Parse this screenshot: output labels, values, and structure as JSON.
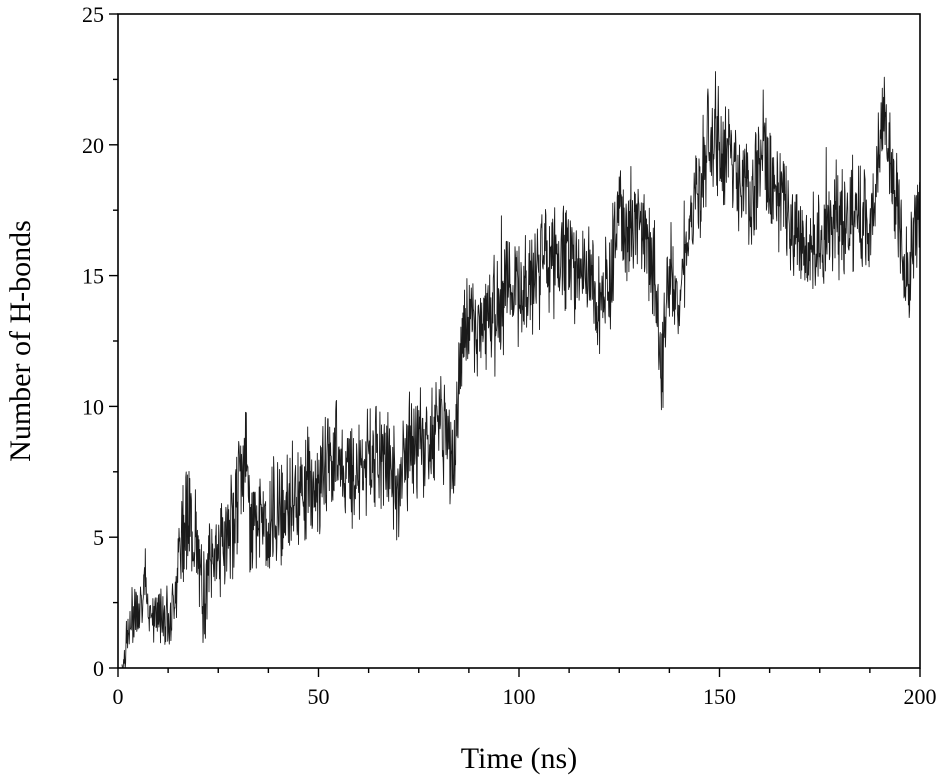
{
  "chart_data": {
    "type": "line",
    "title": "",
    "xlabel": "Time (ns)",
    "ylabel": "Number of H-bonds",
    "xlim": [
      0,
      200
    ],
    "ylim": [
      0,
      25
    ],
    "x_ticks": [
      0,
      50,
      100,
      150,
      200
    ],
    "y_ticks": [
      0,
      5,
      10,
      15,
      20,
      25
    ],
    "x_minor_step": 12.5,
    "y_minor_step": 2.5,
    "grid": false,
    "legend": "none",
    "line_color": "#1a1a1a",
    "series": [
      {
        "x": [
          1,
          2,
          3,
          4,
          5,
          6,
          8,
          10,
          12,
          13,
          14,
          15,
          16,
          17,
          18,
          19,
          20,
          21,
          22,
          23,
          25,
          27,
          29,
          30,
          31,
          32,
          33,
          35,
          37,
          40,
          43,
          45,
          47,
          49,
          50,
          52,
          53,
          54,
          55,
          57,
          58,
          60,
          62,
          64,
          65,
          67,
          69,
          70,
          71,
          72,
          74,
          76,
          78,
          79,
          80,
          82,
          83,
          84,
          85,
          86,
          87,
          88,
          90,
          92,
          94,
          96,
          98,
          100,
          102,
          104,
          106,
          108,
          110,
          112,
          113,
          114,
          116,
          118,
          119,
          120,
          121,
          122,
          123,
          124,
          125,
          126,
          128,
          130,
          131,
          132,
          133,
          134,
          135,
          136,
          137,
          138,
          139,
          140,
          141,
          142,
          143,
          144,
          145,
          146,
          147,
          148,
          149,
          150,
          151,
          153,
          155,
          157,
          159,
          160,
          161,
          162,
          163,
          165,
          167,
          169,
          170,
          172,
          174,
          176,
          178,
          180,
          182,
          184,
          186,
          187,
          188,
          189,
          190,
          191,
          192,
          193,
          194,
          195,
          196,
          197,
          198,
          199,
          200
        ],
        "y": [
          0.1,
          0.9,
          1.5,
          2.2,
          2.5,
          2.8,
          2.3,
          2.0,
          2.1,
          2.0,
          2.6,
          4.0,
          5.5,
          6.0,
          5.2,
          5.6,
          3.6,
          3.0,
          3.2,
          4.1,
          4.6,
          5.0,
          5.7,
          7.0,
          7.5,
          8.2,
          5.5,
          5.6,
          5.3,
          6.2,
          6.4,
          6.8,
          7.1,
          6.9,
          7.0,
          7.8,
          8.2,
          8.0,
          8.3,
          7.2,
          7.5,
          7.6,
          7.7,
          8.4,
          8.1,
          8.0,
          7.2,
          6.7,
          7.8,
          8.2,
          8.5,
          8.7,
          8.3,
          9.5,
          10.0,
          8.5,
          7.9,
          8.6,
          11.0,
          12.5,
          12.8,
          12.6,
          13.0,
          13.7,
          14.0,
          14.2,
          14.5,
          14.3,
          14.4,
          15.0,
          15.4,
          15.6,
          15.8,
          16.0,
          15.2,
          15.1,
          14.8,
          14.9,
          14.2,
          13.0,
          14.5,
          15.0,
          15.2,
          16.8,
          17.2,
          16.9,
          17.0,
          17.1,
          17.0,
          16.5,
          15.5,
          14.8,
          12.5,
          11.5,
          15.0,
          15.2,
          14.0,
          14.2,
          15.6,
          16.5,
          17.0,
          17.8,
          18.0,
          19.2,
          20.2,
          20.0,
          19.8,
          20.2,
          19.5,
          19.8,
          18.5,
          18.0,
          18.3,
          19.8,
          20.0,
          19.0,
          18.5,
          17.8,
          17.5,
          17.0,
          16.5,
          16.0,
          16.2,
          16.4,
          16.8,
          17.0,
          17.2,
          17.4,
          17.0,
          16.8,
          17.5,
          18.5,
          20.5,
          20.3,
          20.2,
          19.5,
          18.0,
          16.5,
          15.0,
          14.8,
          16.0,
          17.0,
          18.0
        ]
      }
    ]
  }
}
